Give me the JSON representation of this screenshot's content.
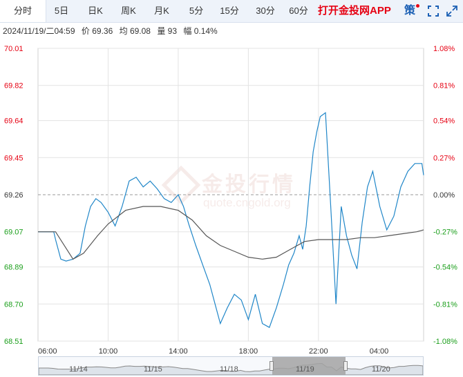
{
  "tabs": [
    {
      "label": "分时",
      "active": true
    },
    {
      "label": "5日"
    },
    {
      "label": "日K"
    },
    {
      "label": "周K"
    },
    {
      "label": "月K"
    },
    {
      "label": "5分"
    },
    {
      "label": "15分"
    },
    {
      "label": "30分"
    },
    {
      "label": "60分"
    }
  ],
  "brand_label": "打开金投网APP",
  "policy_label": "策",
  "info": {
    "datetime": "2024/11/19/二04:59",
    "price": "价 69.36",
    "avg": "均 69.08",
    "volume": "量 93",
    "change": "幅 0.14%"
  },
  "watermark": {
    "text": "金投行情",
    "sub": "quote.cngold.org"
  },
  "colors": {
    "price_line": "#1f86c8",
    "avg_line": "#555555",
    "up": "#e60012",
    "down": "#1a9e1a",
    "ref_line": "#999999",
    "grid": "#e3e3e3"
  },
  "chart_data": {
    "type": "line",
    "reference_price": 69.26,
    "ylim": [
      68.51,
      70.01
    ],
    "y_ticks": [
      "70.01",
      "69.82",
      "69.64",
      "69.45",
      "69.26",
      "69.07",
      "68.89",
      "68.70",
      "68.51"
    ],
    "pct_ticks": [
      "1.08%",
      "0.81%",
      "0.54%",
      "0.27%",
      "0.00%",
      "-0.27%",
      "-0.54%",
      "-0.81%",
      "-1.08%"
    ],
    "x_range": [
      "06:00",
      "04:00"
    ],
    "x_ticks": [
      "06:00",
      "10:00",
      "14:00",
      "18:00",
      "22:00",
      "04:00"
    ],
    "series": [
      {
        "name": "价",
        "hours": [
          0,
          0.9,
          1.0,
          1.3,
          1.6,
          2.0,
          2.4,
          2.7,
          3.0,
          3.3,
          3.6,
          4.0,
          4.4,
          4.8,
          5.2,
          5.6,
          6.0,
          6.4,
          6.8,
          7.2,
          7.6,
          8.0,
          8.3,
          8.6,
          9.0,
          9.4,
          9.8,
          10.1,
          10.4,
          10.8,
          11.2,
          11.6,
          12.0,
          12.4,
          12.8,
          13.2,
          13.6,
          14.0,
          14.3,
          14.6,
          14.9,
          15.1,
          15.3,
          15.5,
          15.7,
          15.9,
          16.1,
          16.4,
          16.7,
          17.0,
          17.3,
          17.6,
          17.9,
          18.2,
          18.5,
          18.8,
          19.1,
          19.5,
          19.9,
          20.3,
          20.7,
          21.1,
          21.5,
          21.9,
          22.0
        ],
        "values": [
          69.07,
          69.07,
          69.03,
          68.93,
          68.92,
          68.93,
          68.96,
          69.1,
          69.2,
          69.24,
          69.22,
          69.17,
          69.1,
          69.2,
          69.33,
          69.35,
          69.3,
          69.33,
          69.29,
          69.24,
          69.22,
          69.26,
          69.2,
          69.11,
          69.0,
          68.9,
          68.8,
          68.7,
          68.6,
          68.68,
          68.75,
          68.72,
          68.62,
          68.75,
          68.6,
          68.58,
          68.68,
          68.8,
          68.9,
          68.96,
          69.05,
          68.98,
          69.1,
          69.3,
          69.48,
          69.58,
          69.66,
          69.68,
          69.2,
          68.7,
          69.2,
          69.05,
          68.95,
          68.88,
          69.12,
          69.3,
          69.38,
          69.2,
          69.08,
          69.15,
          69.3,
          69.38,
          69.42,
          69.42,
          69.36
        ]
      },
      {
        "name": "均",
        "hours": [
          0,
          1.0,
          2.0,
          2.6,
          3.4,
          4.0,
          5.0,
          6.0,
          7.0,
          8.0,
          8.8,
          9.6,
          10.4,
          11.2,
          12.0,
          12.8,
          13.6,
          14.4,
          15.2,
          16.0,
          16.8,
          17.6,
          18.4,
          19.2,
          20.0,
          20.8,
          21.6,
          22.0
        ],
        "values": [
          69.07,
          69.07,
          68.93,
          68.96,
          69.05,
          69.11,
          69.18,
          69.2,
          69.2,
          69.18,
          69.13,
          69.05,
          69.0,
          68.97,
          68.94,
          68.93,
          68.94,
          68.98,
          69.02,
          69.03,
          69.03,
          69.03,
          69.04,
          69.04,
          69.05,
          69.06,
          69.07,
          69.08
        ]
      }
    ]
  },
  "navigator": {
    "labels": [
      "11/14",
      "11/15",
      "11/18",
      "11/19",
      "11/20"
    ]
  }
}
